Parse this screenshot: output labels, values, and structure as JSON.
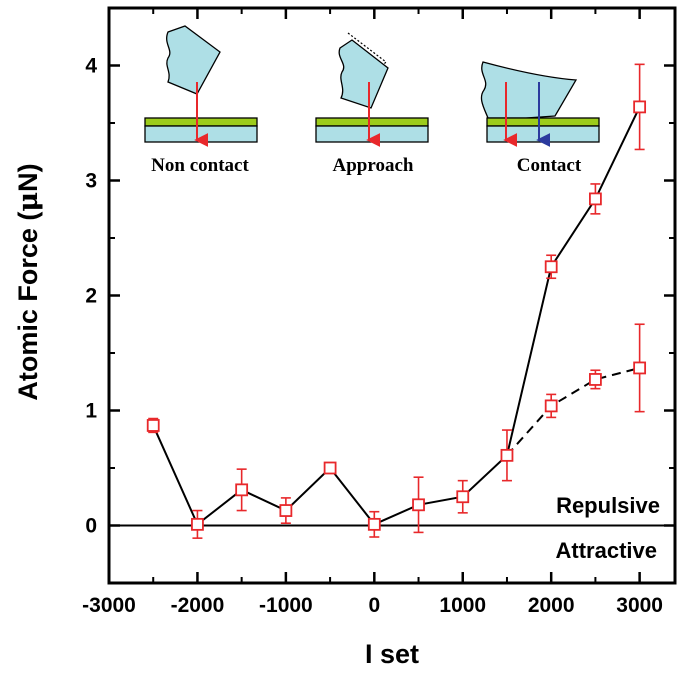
{
  "chart_data": {
    "type": "scatter",
    "xlabel": "I set",
    "ylabel_prefix": "Atomic Force (",
    "ylabel_mu": "μ",
    "ylabel_suffix": "N)",
    "xlim": [
      -3000,
      3400
    ],
    "ylim": [
      -0.5,
      4.5
    ],
    "x_ticks": [
      -3000,
      -2000,
      -1000,
      0,
      1000,
      2000,
      3000
    ],
    "x_tick_labels": [
      "-3000",
      "-2000",
      "-1000",
      "0",
      "1000",
      "2000",
      "3000"
    ],
    "y_ticks": [
      0,
      1,
      2,
      3,
      4
    ],
    "y_tick_labels": [
      "0",
      "1",
      "2",
      "3",
      "4"
    ],
    "grid": false,
    "marker_color": "#e8282b",
    "line_color": "#000000",
    "series": [
      {
        "style": "solid",
        "points": [
          {
            "x": -2500,
            "y": 0.87,
            "err": 0.06
          },
          {
            "x": -2000,
            "y": 0.01,
            "err": 0.12
          },
          {
            "x": -1500,
            "y": 0.31,
            "err": 0.18
          },
          {
            "x": -1000,
            "y": 0.13,
            "err": 0.11
          },
          {
            "x": -500,
            "y": 0.5,
            "err": 0.04
          },
          {
            "x": 0,
            "y": 0.01,
            "err": 0.11
          },
          {
            "x": 500,
            "y": 0.18,
            "err": 0.24
          },
          {
            "x": 1000,
            "y": 0.25,
            "err": 0.14
          },
          {
            "x": 1500,
            "y": 0.61,
            "err": 0.22
          },
          {
            "x": 2000,
            "y": 2.25,
            "err": 0.1
          },
          {
            "x": 2500,
            "y": 2.84,
            "err": 0.13
          },
          {
            "x": 3000,
            "y": 3.64,
            "err": 0.37
          }
        ]
      },
      {
        "style": "dashed",
        "points": [
          {
            "x": 1500,
            "y": 0.61,
            "err": 0.22
          },
          {
            "x": 2000,
            "y": 1.04,
            "err": 0.1
          },
          {
            "x": 2500,
            "y": 1.27,
            "err": 0.08
          },
          {
            "x": 3000,
            "y": 1.37,
            "err": 0.38
          }
        ]
      }
    ],
    "zero_line": {
      "y": 0
    },
    "annotations": {
      "repulsive": "Repulsive",
      "attractive": "Attractive"
    },
    "insets": [
      {
        "label": "Non contact"
      },
      {
        "label": "Approach"
      },
      {
        "label": "Contact"
      }
    ],
    "inset_colors": {
      "tip": "#aedfe6",
      "surface_top": "#9ccc1c",
      "surface_base": "#aedfe6",
      "force_red": "#e8282b",
      "force_blue": "#2b3a9e"
    }
  }
}
